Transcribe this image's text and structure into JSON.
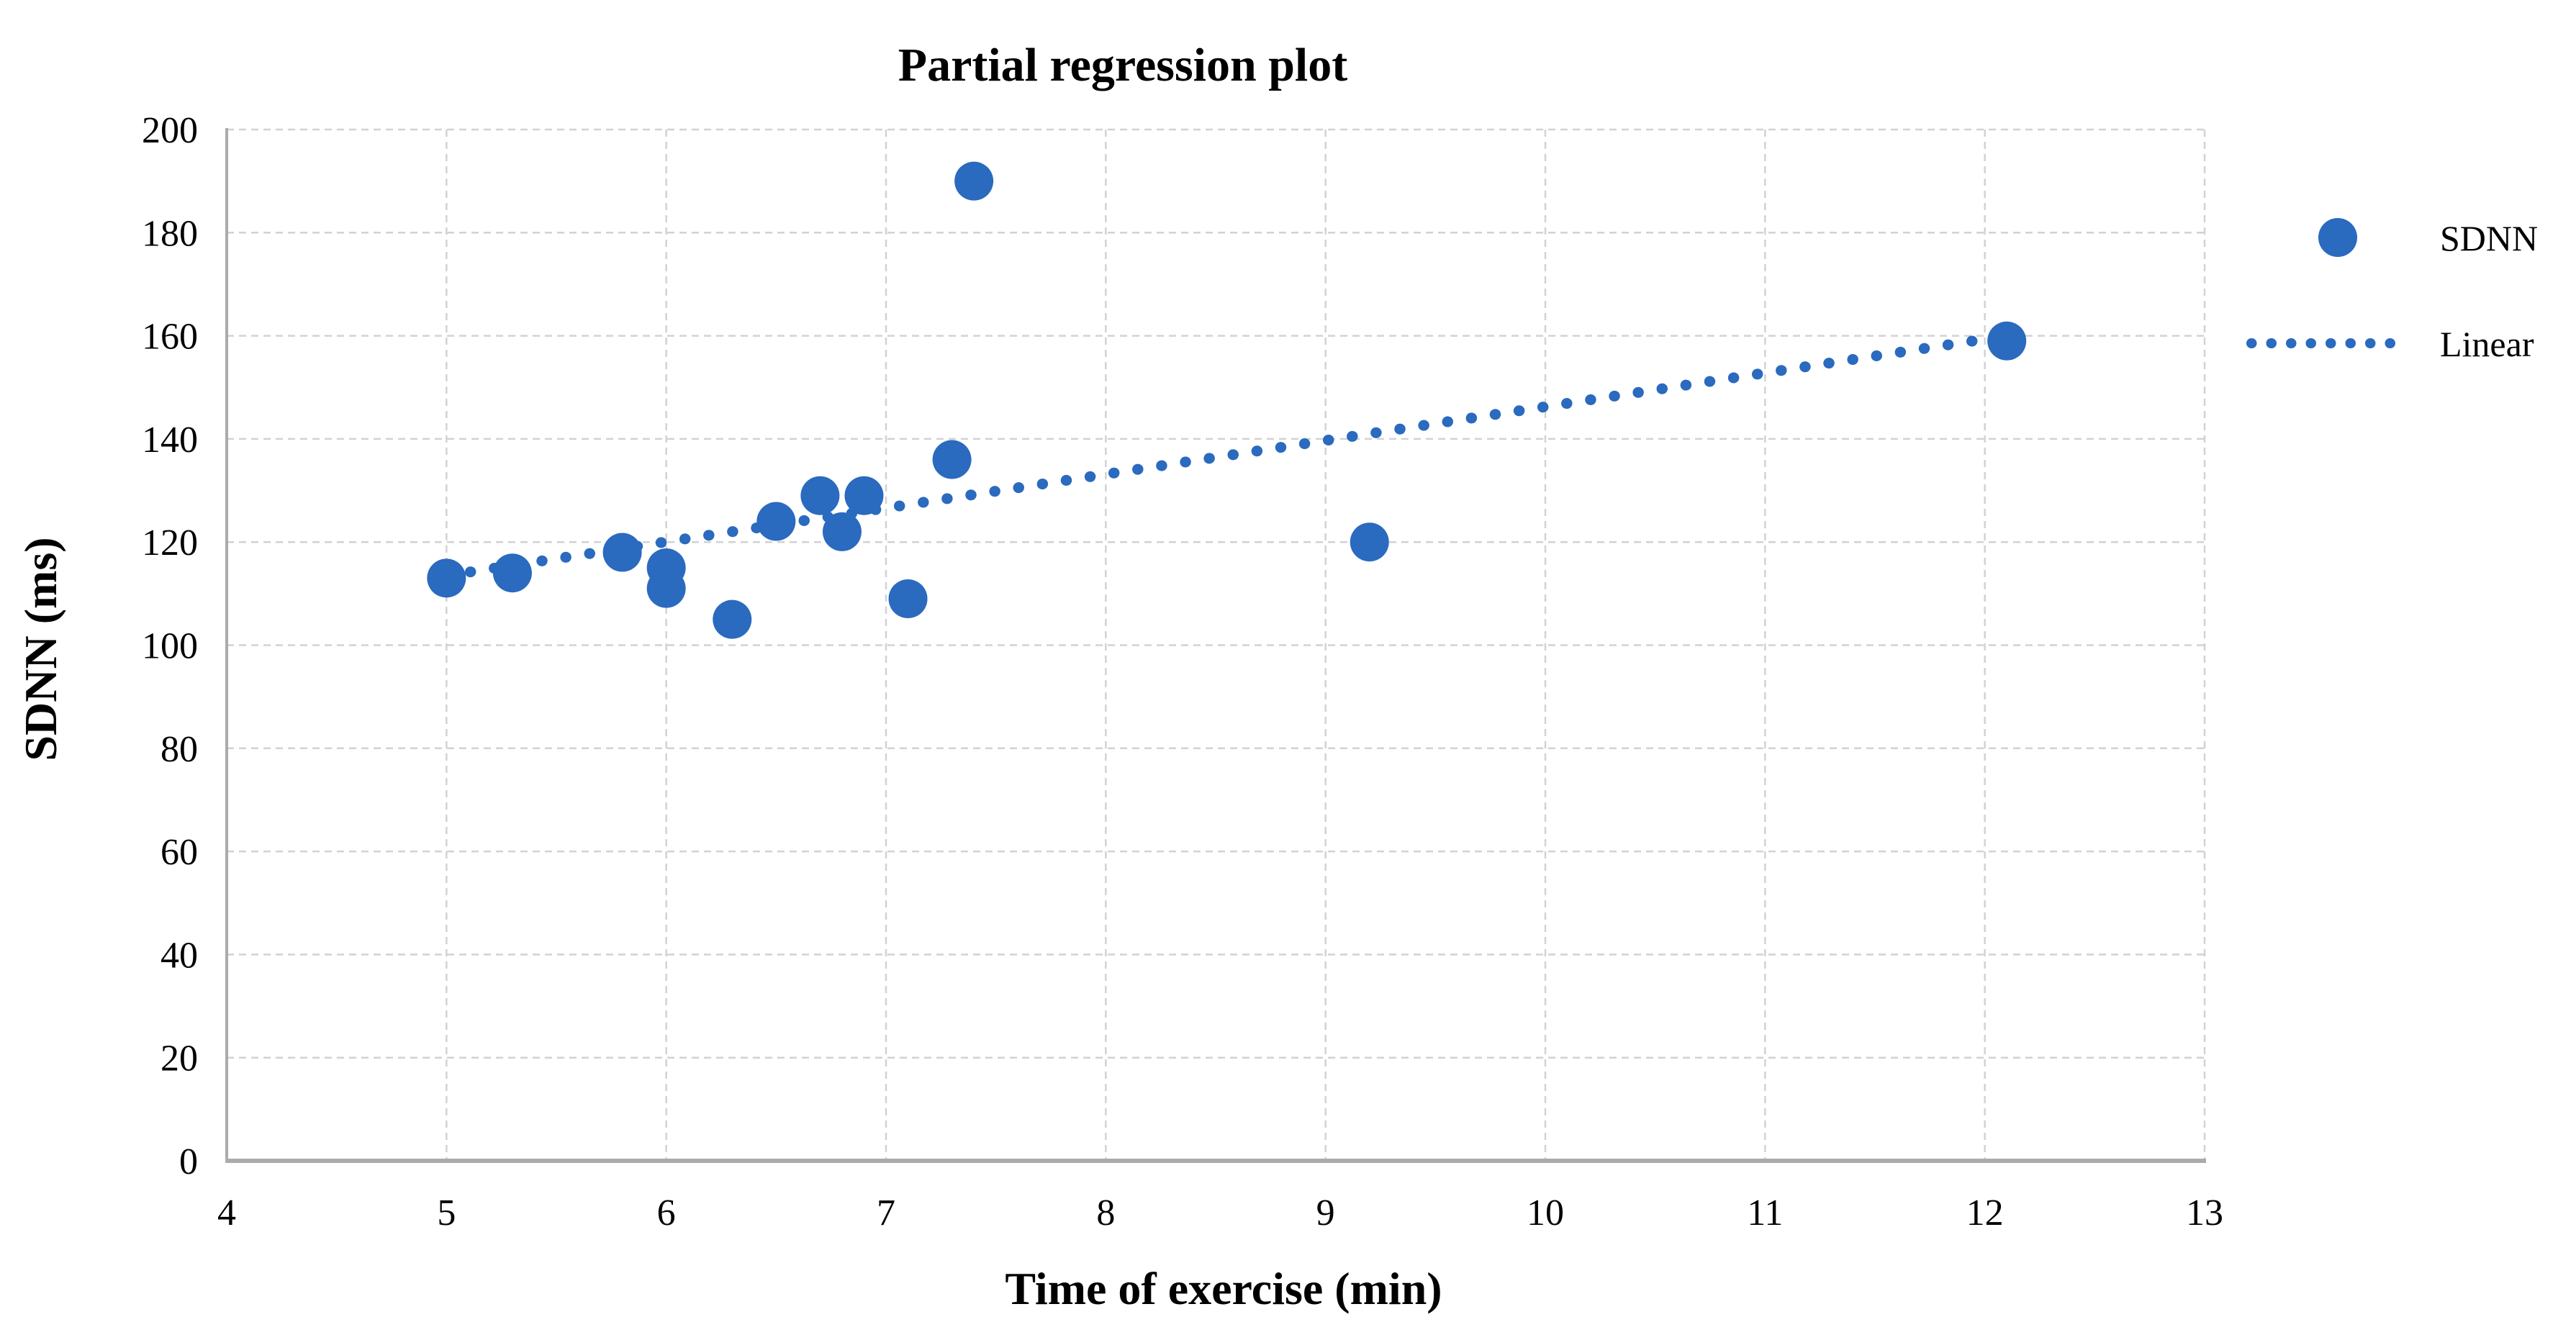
{
  "chart_data": {
    "type": "scatter",
    "title": "Partial regression plot",
    "xlabel": "Time of exercise (min)",
    "ylabel": "SDNN (ms)",
    "xlim": [
      4,
      13
    ],
    "ylim": [
      0,
      200
    ],
    "x_ticks": [
      4,
      5,
      6,
      7,
      8,
      9,
      10,
      11,
      12,
      13
    ],
    "y_ticks": [
      0,
      20,
      40,
      60,
      80,
      100,
      120,
      140,
      160,
      180,
      200
    ],
    "grid": true,
    "legend_position": "right",
    "series": [
      {
        "name": "SDNN",
        "type": "scatter",
        "marker": "circle",
        "points": [
          [
            5.0,
            113
          ],
          [
            5.3,
            114
          ],
          [
            5.8,
            118
          ],
          [
            6.0,
            115
          ],
          [
            6.0,
            111
          ],
          [
            6.3,
            105
          ],
          [
            6.5,
            124
          ],
          [
            6.7,
            129
          ],
          [
            6.8,
            122
          ],
          [
            6.9,
            129
          ],
          [
            7.1,
            109
          ],
          [
            7.3,
            136
          ],
          [
            7.4,
            190
          ],
          [
            9.2,
            120
          ],
          [
            12.1,
            159
          ]
        ]
      },
      {
        "name": "Linear",
        "type": "trendline",
        "style": "dotted",
        "from": [
          5.0,
          113.5
        ],
        "to": [
          12.1,
          160.0
        ]
      }
    ]
  },
  "legend": {
    "items": [
      {
        "label": "SDNN",
        "marker": "filled-circle"
      },
      {
        "label": "Linear",
        "marker": "dotted-line"
      }
    ]
  },
  "colors": {
    "series_blue": "#2a6abf",
    "gridline": "#d2d2d2",
    "axis_line": "#ababab",
    "text": "#000000",
    "background": "#ffffff"
  }
}
